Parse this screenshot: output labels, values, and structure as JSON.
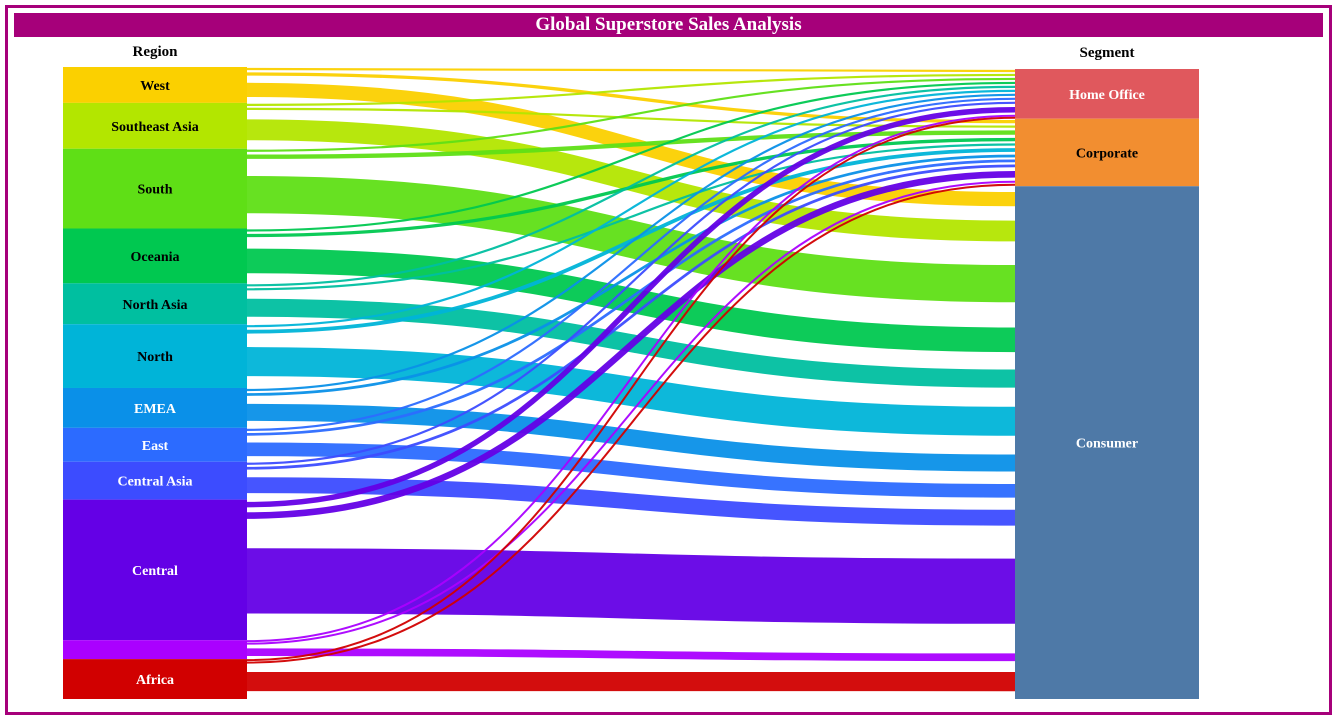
{
  "title": "Global Superstore Sales Analysis",
  "left_header": "Region",
  "right_header": "Segment",
  "chart_data": {
    "type": "sankey",
    "regions": [
      {
        "name": "West",
        "color": "#fbd000",
        "text_color": "#000000",
        "value": 36
      },
      {
        "name": "Southeast Asia",
        "color": "#b3e600",
        "text_color": "#000000",
        "value": 46
      },
      {
        "name": "South",
        "color": "#5fdf16",
        "text_color": "#000000",
        "value": 80
      },
      {
        "name": "Oceania",
        "color": "#00c850",
        "text_color": "#000000",
        "value": 55
      },
      {
        "name": "North Asia",
        "color": "#00bfa0",
        "text_color": "#000000",
        "value": 41
      },
      {
        "name": "North",
        "color": "#00b4d8",
        "text_color": "#000000",
        "value": 64
      },
      {
        "name": "EMEA",
        "color": "#0a90e8",
        "text_color": "#ffffff",
        "value": 40
      },
      {
        "name": "East",
        "color": "#2c6bff",
        "text_color": "#ffffff",
        "value": 34
      },
      {
        "name": "Central Asia",
        "color": "#3c4cff",
        "text_color": "#ffffff",
        "value": 38
      },
      {
        "name": "Central",
        "color": "#6400e6",
        "text_color": "#ffffff",
        "value": 141
      },
      {
        "name": "",
        "color": "#aa00ff",
        "text_color": "#ffffff",
        "value": 19
      },
      {
        "name": "Africa",
        "color": "#d10000",
        "text_color": "#ffffff",
        "value": 40
      }
    ],
    "segments": [
      {
        "name": "Home Office",
        "color": "#e0585d",
        "text_color": "#ffffff"
      },
      {
        "name": "Corporate",
        "color": "#f28e30",
        "text_color": "#000000"
      },
      {
        "name": "Consumer",
        "color": "#4e79a7",
        "text_color": "#ffffff"
      }
    ],
    "links": [
      {
        "source": 0,
        "target": 0,
        "value": 4
      },
      {
        "source": 0,
        "target": 1,
        "value": 6
      },
      {
        "source": 0,
        "target": 2,
        "value": 26
      },
      {
        "source": 1,
        "target": 0,
        "value": 4
      },
      {
        "source": 1,
        "target": 1,
        "value": 4
      },
      {
        "source": 1,
        "target": 2,
        "value": 38
      },
      {
        "source": 2,
        "target": 0,
        "value": 4
      },
      {
        "source": 2,
        "target": 1,
        "value": 8
      },
      {
        "source": 2,
        "target": 2,
        "value": 68
      },
      {
        "source": 3,
        "target": 0,
        "value": 4
      },
      {
        "source": 3,
        "target": 1,
        "value": 6
      },
      {
        "source": 3,
        "target": 2,
        "value": 45
      },
      {
        "source": 4,
        "target": 0,
        "value": 4
      },
      {
        "source": 4,
        "target": 1,
        "value": 4
      },
      {
        "source": 4,
        "target": 2,
        "value": 33
      },
      {
        "source": 5,
        "target": 0,
        "value": 4
      },
      {
        "source": 5,
        "target": 1,
        "value": 7
      },
      {
        "source": 5,
        "target": 2,
        "value": 53
      },
      {
        "source": 6,
        "target": 0,
        "value": 4
      },
      {
        "source": 6,
        "target": 1,
        "value": 5
      },
      {
        "source": 6,
        "target": 2,
        "value": 31
      },
      {
        "source": 7,
        "target": 0,
        "value": 4
      },
      {
        "source": 7,
        "target": 1,
        "value": 5
      },
      {
        "source": 7,
        "target": 2,
        "value": 25
      },
      {
        "source": 8,
        "target": 0,
        "value": 4
      },
      {
        "source": 8,
        "target": 1,
        "value": 5
      },
      {
        "source": 8,
        "target": 2,
        "value": 29
      },
      {
        "source": 9,
        "target": 0,
        "value": 10
      },
      {
        "source": 9,
        "target": 1,
        "value": 12
      },
      {
        "source": 9,
        "target": 2,
        "value": 119
      },
      {
        "source": 10,
        "target": 0,
        "value": 2
      },
      {
        "source": 10,
        "target": 1,
        "value": 3
      },
      {
        "source": 10,
        "target": 2,
        "value": 14
      },
      {
        "source": 11,
        "target": 0,
        "value": 2
      },
      {
        "source": 11,
        "target": 1,
        "value": 3
      },
      {
        "source": 11,
        "target": 2,
        "value": 35
      }
    ]
  }
}
